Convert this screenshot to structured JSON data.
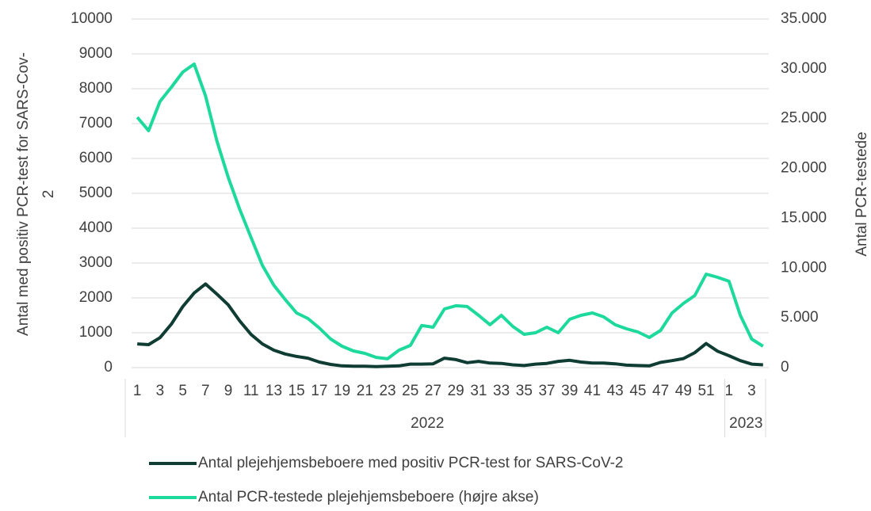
{
  "chart_data": {
    "type": "line",
    "y_label": "Antal med positiv PCR-test for SARS-Cov-2",
    "y2_label": "Antal PCR-testede",
    "groups": [
      {
        "name": "2022",
        "categories": [
          1,
          null,
          3,
          null,
          5,
          null,
          7,
          null,
          9,
          null,
          11,
          null,
          13,
          null,
          15,
          null,
          17,
          null,
          19,
          null,
          21,
          null,
          23,
          null,
          25,
          null,
          27,
          null,
          29,
          null,
          31,
          null,
          33,
          null,
          35,
          null,
          37,
          null,
          39,
          null,
          41,
          null,
          43,
          null,
          45,
          null,
          47,
          null,
          49,
          null,
          51,
          null
        ]
      },
      {
        "name": "2023",
        "categories": [
          1,
          null,
          3,
          null
        ]
      }
    ],
    "series": [
      {
        "name": "Antal plejehjemsbeboere med positiv PCR-test for SARS-CoV-2",
        "color": "#0f3d33",
        "axis": "y",
        "values": [
          680,
          660,
          860,
          1250,
          1750,
          2140,
          2400,
          2110,
          1800,
          1340,
          950,
          680,
          500,
          390,
          320,
          270,
          160,
          90,
          50,
          40,
          40,
          30,
          40,
          50,
          100,
          100,
          110,
          270,
          230,
          140,
          180,
          130,
          120,
          80,
          60,
          100,
          120,
          180,
          210,
          160,
          130,
          130,
          110,
          70,
          60,
          50,
          150,
          200,
          260,
          430,
          690,
          470,
          340,
          200,
          100,
          80
        ]
      },
      {
        "name": "Antal PCR-testede plejehjemsbeboere (højre akse)",
        "color": "#1ed99c",
        "axis": "y2",
        "values": [
          25140,
          23790,
          26730,
          28160,
          29670,
          30470,
          27290,
          22750,
          19090,
          15910,
          13050,
          10260,
          8270,
          6840,
          5490,
          4930,
          3980,
          2860,
          2150,
          1670,
          1430,
          1030,
          880,
          1750,
          2230,
          4220,
          4060,
          5890,
          6210,
          6130,
          5250,
          4300,
          5250,
          4140,
          3340,
          3500,
          4060,
          3500,
          4850,
          5250,
          5490,
          5090,
          4300,
          3900,
          3580,
          3020,
          3740,
          5490,
          6440,
          7240,
          9390,
          9070,
          8670,
          5250,
          2860,
          2150
        ]
      }
    ],
    "ylim": [
      0,
      10000
    ],
    "yticks": [
      0,
      1000,
      2000,
      3000,
      4000,
      5000,
      6000,
      7000,
      8000,
      9000,
      10000
    ],
    "y2lim": [
      0,
      35000
    ],
    "y2ticks": [
      0,
      {
        "value": 5000,
        "label": "5.000"
      },
      {
        "value": 10000,
        "label": "10.000"
      },
      {
        "value": 15000,
        "label": "15.000"
      },
      {
        "value": 20000,
        "label": "20.000"
      },
      {
        "value": 25000,
        "label": "25.000"
      },
      {
        "value": 30000,
        "label": "30.000"
      },
      {
        "value": 35000,
        "label": "35.000"
      }
    ],
    "grid": true
  }
}
